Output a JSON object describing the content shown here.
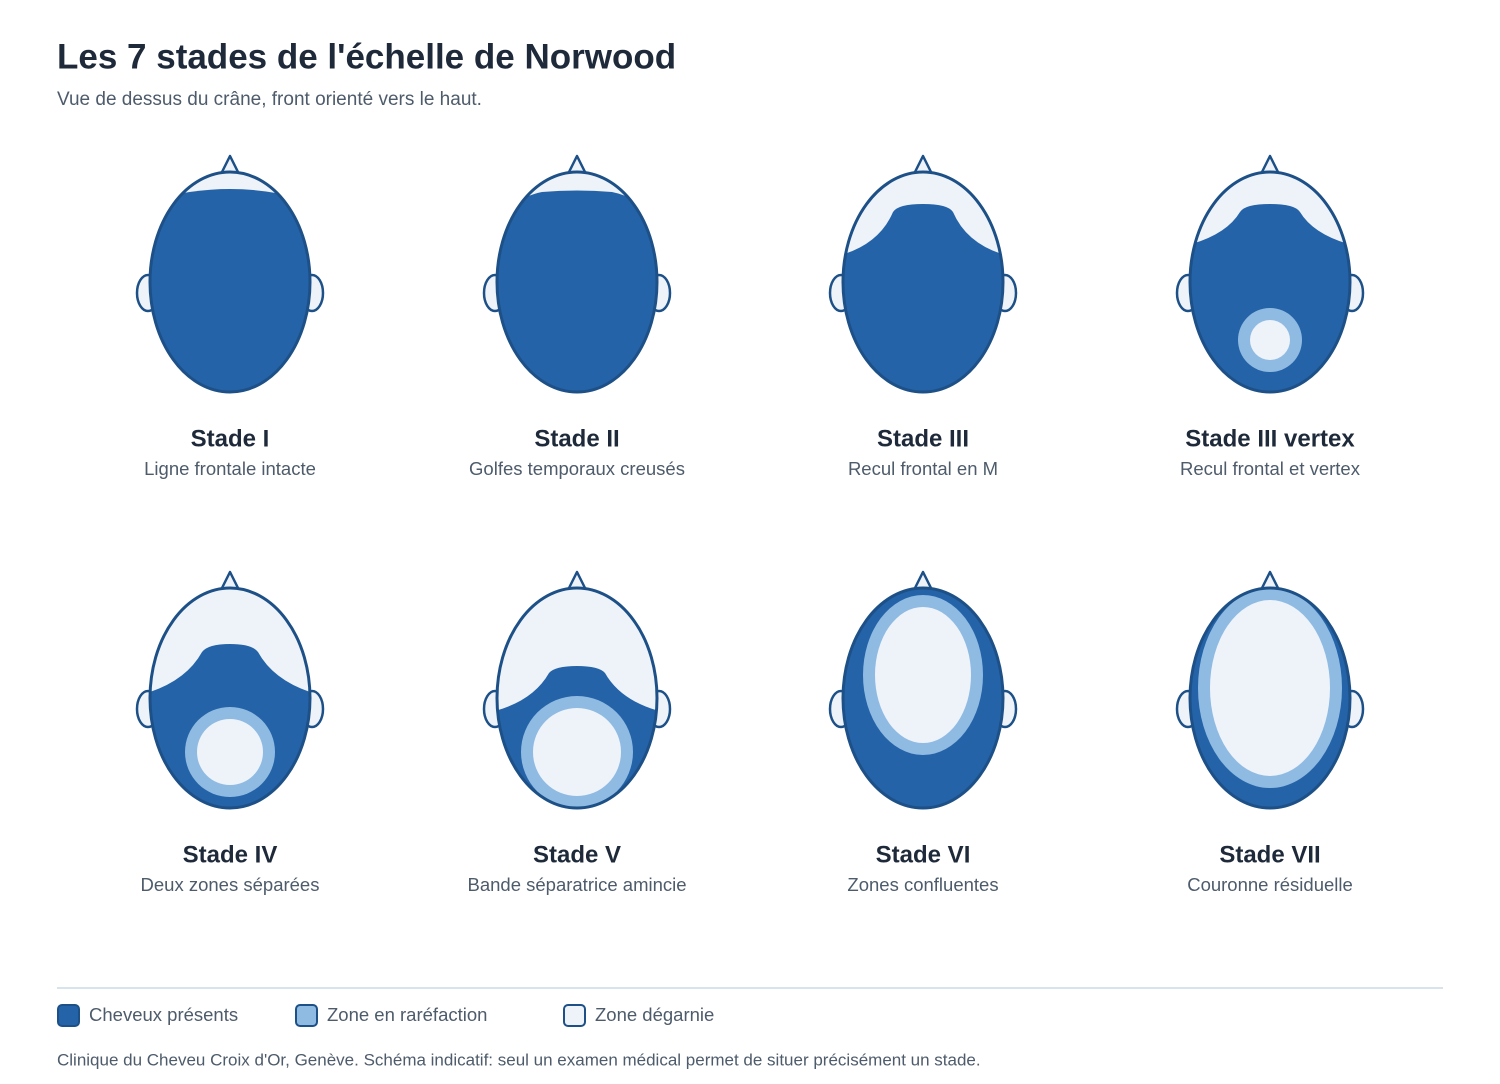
{
  "header": {
    "title": "Les 7 stades de l'échelle de Norwood",
    "subtitle": "Vue de dessus du crâne, front orienté vers le haut."
  },
  "stages": [
    {
      "name": "Stade I",
      "description": "Ligne frontale intacte"
    },
    {
      "name": "Stade II",
      "description": "Golfes temporaux creusés"
    },
    {
      "name": "Stade III",
      "description": "Recul frontal en M"
    },
    {
      "name": "Stade III vertex",
      "description": "Recul frontal et vertex"
    },
    {
      "name": "Stade IV",
      "description": "Deux zones séparées"
    },
    {
      "name": "Stade V",
      "description": "Bande séparatrice amincie"
    },
    {
      "name": "Stade VI",
      "description": "Zones confluentes"
    },
    {
      "name": "Stade VII",
      "description": "Couronne résiduelle"
    }
  ],
  "legend": [
    {
      "label": "Cheveux présents"
    },
    {
      "label": "Zone en raréfaction"
    },
    {
      "label": "Zone dégarnie"
    }
  ],
  "footnote": "Clinique du Cheveu Croix d'Or, Genève. Schéma indicatif: seul un examen médical permet de situer précisément un stade."
}
